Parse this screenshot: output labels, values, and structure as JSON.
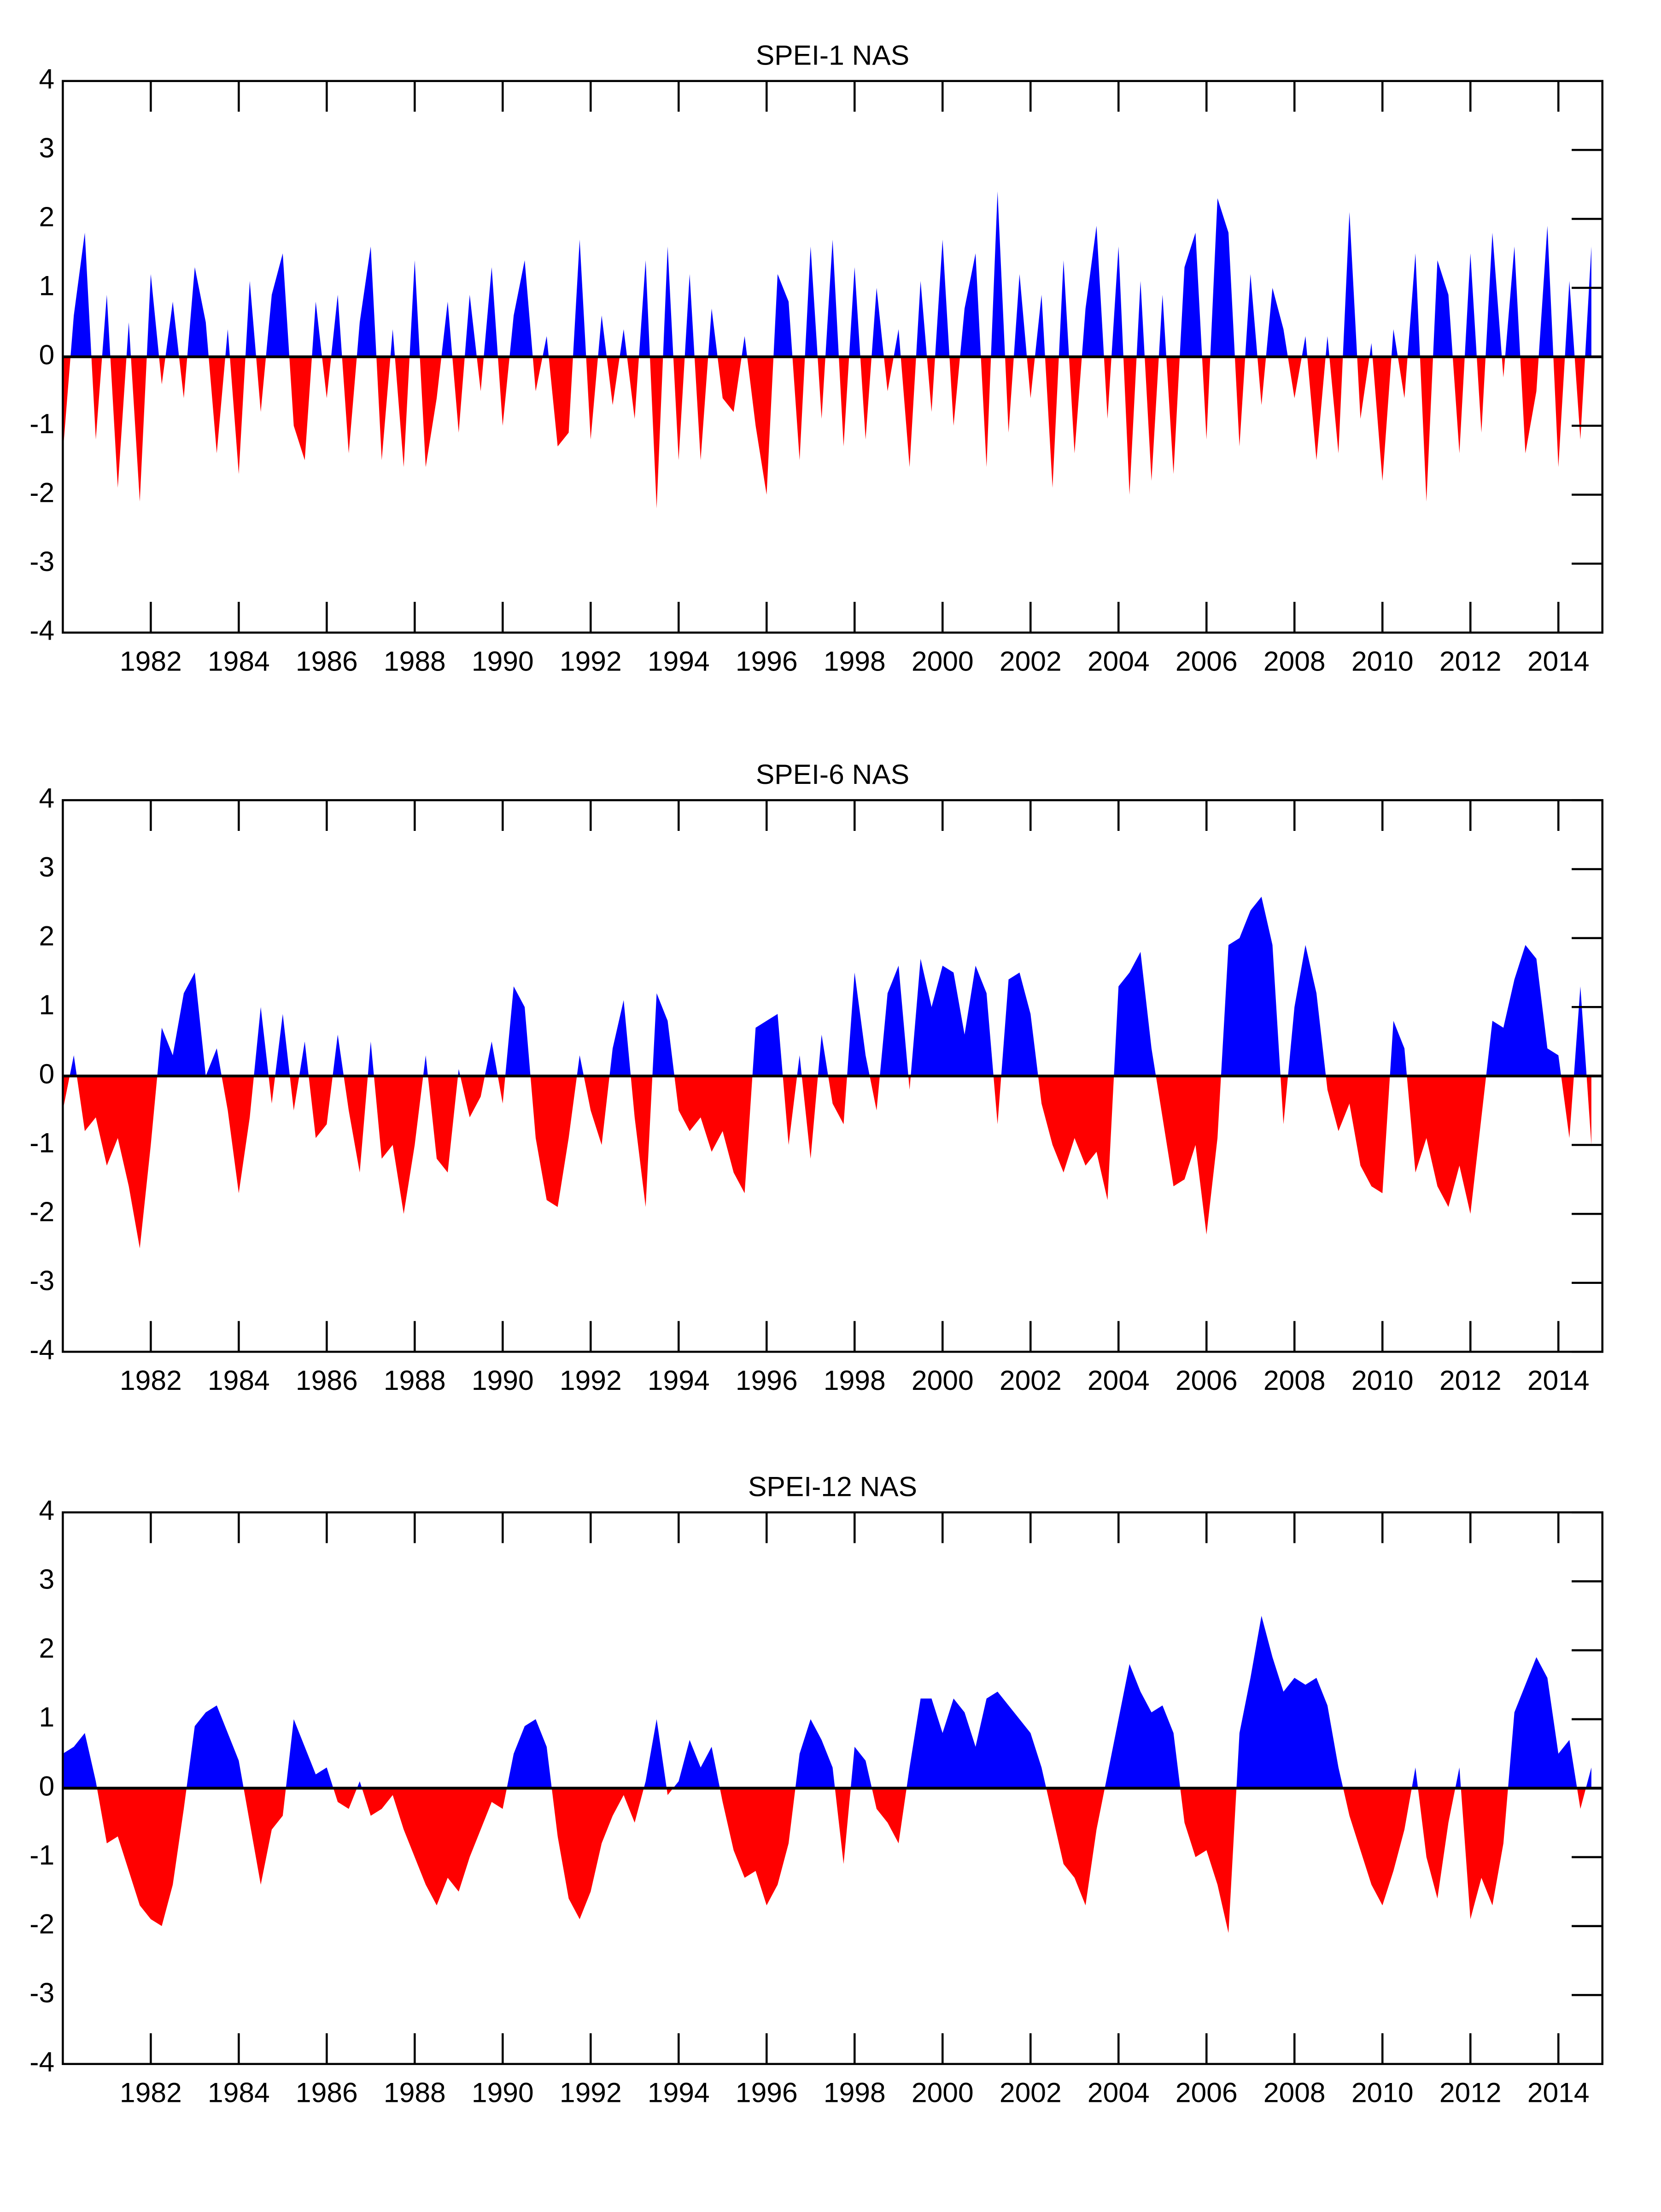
{
  "chart_data": [
    {
      "type": "area",
      "title": "SPEI-1 NAS",
      "pos_color": "#0000ff",
      "neg_color": "#ff0000",
      "x": [
        1980,
        1980.25,
        1980.5,
        1980.75,
        1981,
        1981.25,
        1981.5,
        1981.75,
        1982,
        1982.25,
        1982.5,
        1982.75,
        1983,
        1983.25,
        1983.5,
        1983.75,
        1984,
        1984.25,
        1984.5,
        1984.75,
        1985,
        1985.25,
        1985.5,
        1985.75,
        1986,
        1986.25,
        1986.5,
        1986.75,
        1987,
        1987.25,
        1987.5,
        1987.75,
        1988,
        1988.25,
        1988.5,
        1988.75,
        1989,
        1989.25,
        1989.5,
        1989.75,
        1990,
        1990.25,
        1990.5,
        1990.75,
        1991,
        1991.25,
        1991.5,
        1991.75,
        1992,
        1992.25,
        1992.5,
        1992.75,
        1993,
        1993.25,
        1993.5,
        1993.75,
        1994,
        1994.25,
        1994.5,
        1994.75,
        1995,
        1995.25,
        1995.5,
        1995.75,
        1996,
        1996.25,
        1996.5,
        1996.75,
        1997,
        1997.25,
        1997.5,
        1997.75,
        1998,
        1998.25,
        1998.5,
        1998.75,
        1999,
        1999.25,
        1999.5,
        1999.75,
        2000,
        2000.25,
        2000.5,
        2000.75,
        2001,
        2001.25,
        2001.5,
        2001.75,
        2002,
        2002.25,
        2002.5,
        2002.75,
        2003,
        2003.25,
        2003.5,
        2003.75,
        2004,
        2004.25,
        2004.5,
        2004.75,
        2005,
        2005.25,
        2005.5,
        2005.75,
        2006,
        2006.25,
        2006.5,
        2006.75,
        2007,
        2007.25,
        2007.5,
        2007.75,
        2008,
        2008.25,
        2008.5,
        2008.75,
        2009,
        2009.25,
        2009.5,
        2009.75,
        2010,
        2010.25,
        2010.5,
        2010.75,
        2011,
        2011.25,
        2011.5,
        2011.75,
        2012,
        2012.25,
        2012.5,
        2012.75,
        2013,
        2013.25,
        2013.5,
        2013.75,
        2014,
        2014.25,
        2014.5,
        2014.75
      ],
      "values": [
        -1.4,
        0.6,
        1.8,
        -1.2,
        0.9,
        -1.9,
        0.5,
        -2.1,
        1.2,
        -0.4,
        0.8,
        -0.6,
        1.3,
        0.5,
        -1.4,
        0.4,
        -1.7,
        1.1,
        -0.8,
        0.9,
        1.5,
        -1.0,
        -1.5,
        0.8,
        -0.6,
        0.9,
        -1.4,
        0.5,
        1.6,
        -1.5,
        0.4,
        -1.6,
        1.4,
        -1.6,
        -0.6,
        0.8,
        -1.1,
        0.9,
        -0.5,
        1.3,
        -1.0,
        0.6,
        1.4,
        -0.5,
        0.3,
        -1.3,
        -1.1,
        1.7,
        -1.2,
        0.6,
        -0.7,
        0.4,
        -0.9,
        1.4,
        -2.2,
        1.6,
        -1.5,
        1.2,
        -1.5,
        0.7,
        -0.6,
        -0.8,
        0.3,
        -1.0,
        -2.0,
        1.2,
        0.8,
        -1.5,
        1.6,
        -0.9,
        1.7,
        -1.3,
        1.3,
        -1.2,
        1.0,
        -0.5,
        0.4,
        -1.6,
        1.1,
        -0.8,
        1.7,
        -1.0,
        0.7,
        1.5,
        -1.6,
        2.4,
        -1.1,
        1.2,
        -0.6,
        0.9,
        -1.9,
        1.4,
        -1.4,
        0.7,
        1.9,
        -0.9,
        1.6,
        -2.0,
        1.1,
        -1.8,
        0.9,
        -1.7,
        1.3,
        1.8,
        -1.2,
        2.3,
        1.8,
        -1.3,
        1.2,
        -0.7,
        1.0,
        0.4,
        -0.6,
        0.3,
        -1.5,
        0.3,
        -1.4,
        2.1,
        -0.9,
        0.2,
        -1.8,
        0.4,
        -0.6,
        1.5,
        -2.1,
        1.4,
        0.9,
        -1.4,
        1.5,
        -1.1,
        1.8,
        -0.3,
        1.6,
        -1.4,
        -0.5,
        1.9,
        -1.6,
        1.1,
        -1.2,
        1.6
      ],
      "xlim": [
        1980,
        2015
      ],
      "ylim": [
        -4,
        4
      ],
      "xticks": [
        1982,
        1984,
        1986,
        1988,
        1990,
        1992,
        1994,
        1996,
        1998,
        2000,
        2002,
        2004,
        2006,
        2008,
        2010,
        2012,
        2014
      ],
      "yticks": [
        -4,
        -3,
        -2,
        -1,
        0,
        1,
        2,
        3,
        4
      ]
    },
    {
      "type": "area",
      "title": "SPEI-6 NAS",
      "pos_color": "#0000ff",
      "neg_color": "#ff0000",
      "x": [
        1980,
        1980.25,
        1980.5,
        1980.75,
        1981,
        1981.25,
        1981.5,
        1981.75,
        1982,
        1982.25,
        1982.5,
        1982.75,
        1983,
        1983.25,
        1983.5,
        1983.75,
        1984,
        1984.25,
        1984.5,
        1984.75,
        1985,
        1985.25,
        1985.5,
        1985.75,
        1986,
        1986.25,
        1986.5,
        1986.75,
        1987,
        1987.25,
        1987.5,
        1987.75,
        1988,
        1988.25,
        1988.5,
        1988.75,
        1989,
        1989.25,
        1989.5,
        1989.75,
        1990,
        1990.25,
        1990.5,
        1990.75,
        1991,
        1991.25,
        1991.5,
        1991.75,
        1992,
        1992.25,
        1992.5,
        1992.75,
        1993,
        1993.25,
        1993.5,
        1993.75,
        1994,
        1994.25,
        1994.5,
        1994.75,
        1995,
        1995.25,
        1995.5,
        1995.75,
        1996,
        1996.25,
        1996.5,
        1996.75,
        1997,
        1997.25,
        1997.5,
        1997.75,
        1998,
        1998.25,
        1998.5,
        1998.75,
        1999,
        1999.25,
        1999.5,
        1999.75,
        2000,
        2000.25,
        2000.5,
        2000.75,
        2001,
        2001.25,
        2001.5,
        2001.75,
        2002,
        2002.25,
        2002.5,
        2002.75,
        2003,
        2003.25,
        2003.5,
        2003.75,
        2004,
        2004.25,
        2004.5,
        2004.75,
        2005,
        2005.25,
        2005.5,
        2005.75,
        2006,
        2006.25,
        2006.5,
        2006.75,
        2007,
        2007.25,
        2007.5,
        2007.75,
        2008,
        2008.25,
        2008.5,
        2008.75,
        2009,
        2009.25,
        2009.5,
        2009.75,
        2010,
        2010.25,
        2010.5,
        2010.75,
        2011,
        2011.25,
        2011.5,
        2011.75,
        2012,
        2012.25,
        2012.5,
        2012.75,
        2013,
        2013.25,
        2013.5,
        2013.75,
        2014,
        2014.25,
        2014.5,
        2014.75
      ],
      "values": [
        -0.5,
        0.3,
        -0.8,
        -0.6,
        -1.3,
        -0.9,
        -1.6,
        -2.5,
        -1.0,
        0.7,
        0.3,
        1.2,
        1.5,
        0.0,
        0.4,
        -0.5,
        -1.7,
        -0.6,
        1.0,
        -0.4,
        0.9,
        -0.5,
        0.5,
        -0.9,
        -0.7,
        0.6,
        -0.5,
        -1.4,
        0.5,
        -1.2,
        -1.0,
        -2.0,
        -1.0,
        0.3,
        -1.2,
        -1.4,
        0.1,
        -0.6,
        -0.3,
        0.5,
        -0.4,
        1.3,
        1.0,
        -0.9,
        -1.8,
        -1.9,
        -0.9,
        0.3,
        -0.5,
        -1.0,
        0.4,
        1.1,
        -0.6,
        -1.9,
        1.2,
        0.8,
        -0.5,
        -0.8,
        -0.6,
        -1.1,
        -0.8,
        -1.4,
        -1.7,
        0.7,
        0.8,
        0.9,
        -1.0,
        0.3,
        -1.2,
        0.6,
        -0.4,
        -0.7,
        1.5,
        0.3,
        -0.5,
        1.2,
        1.6,
        -0.2,
        1.7,
        1.0,
        1.6,
        1.5,
        0.6,
        1.6,
        1.2,
        -0.7,
        1.4,
        1.5,
        0.9,
        -0.4,
        -1.0,
        -1.4,
        -0.9,
        -1.3,
        -1.1,
        -1.8,
        1.3,
        1.5,
        1.8,
        0.4,
        -0.6,
        -1.6,
        -1.5,
        -1.0,
        -2.3,
        -0.9,
        1.9,
        2.0,
        2.4,
        2.6,
        1.9,
        -0.7,
        1.0,
        1.9,
        1.2,
        -0.2,
        -0.8,
        -0.4,
        -1.3,
        -1.6,
        -1.7,
        0.8,
        0.4,
        -1.4,
        -0.9,
        -1.6,
        -1.9,
        -1.3,
        -2.0,
        -0.6,
        0.8,
        0.7,
        1.4,
        1.9,
        1.7,
        0.4,
        0.3,
        -0.9,
        1.3,
        -1.0
      ],
      "xlim": [
        1980,
        2015
      ],
      "ylim": [
        -4,
        4
      ],
      "xticks": [
        1982,
        1984,
        1986,
        1988,
        1990,
        1992,
        1994,
        1996,
        1998,
        2000,
        2002,
        2004,
        2006,
        2008,
        2010,
        2012,
        2014
      ],
      "yticks": [
        -4,
        -3,
        -2,
        -1,
        0,
        1,
        2,
        3,
        4
      ]
    },
    {
      "type": "area",
      "title": "SPEI-12 NAS",
      "pos_color": "#0000ff",
      "neg_color": "#ff0000",
      "x": [
        1980,
        1980.25,
        1980.5,
        1980.75,
        1981,
        1981.25,
        1981.5,
        1981.75,
        1982,
        1982.25,
        1982.5,
        1982.75,
        1983,
        1983.25,
        1983.5,
        1983.75,
        1984,
        1984.25,
        1984.5,
        1984.75,
        1985,
        1985.25,
        1985.5,
        1985.75,
        1986,
        1986.25,
        1986.5,
        1986.75,
        1987,
        1987.25,
        1987.5,
        1987.75,
        1988,
        1988.25,
        1988.5,
        1988.75,
        1989,
        1989.25,
        1989.5,
        1989.75,
        1990,
        1990.25,
        1990.5,
        1990.75,
        1991,
        1991.25,
        1991.5,
        1991.75,
        1992,
        1992.25,
        1992.5,
        1992.75,
        1993,
        1993.25,
        1993.5,
        1993.75,
        1994,
        1994.25,
        1994.5,
        1994.75,
        1995,
        1995.25,
        1995.5,
        1995.75,
        1996,
        1996.25,
        1996.5,
        1996.75,
        1997,
        1997.25,
        1997.5,
        1997.75,
        1998,
        1998.25,
        1998.5,
        1998.75,
        1999,
        1999.25,
        1999.5,
        1999.75,
        2000,
        2000.25,
        2000.5,
        2000.75,
        2001,
        2001.25,
        2001.5,
        2001.75,
        2002,
        2002.25,
        2002.5,
        2002.75,
        2003,
        2003.25,
        2003.5,
        2003.75,
        2004,
        2004.25,
        2004.5,
        2004.75,
        2005,
        2005.25,
        2005.5,
        2005.75,
        2006,
        2006.25,
        2006.5,
        2006.75,
        2007,
        2007.25,
        2007.5,
        2007.75,
        2008,
        2008.25,
        2008.5,
        2008.75,
        2009,
        2009.25,
        2009.5,
        2009.75,
        2010,
        2010.25,
        2010.5,
        2010.75,
        2011,
        2011.25,
        2011.5,
        2011.75,
        2012,
        2012.25,
        2012.5,
        2012.75,
        2013,
        2013.25,
        2013.5,
        2013.75,
        2014,
        2014.25,
        2014.5,
        2014.75
      ],
      "values": [
        0.5,
        0.6,
        0.8,
        0.1,
        -0.8,
        -0.7,
        -1.2,
        -1.7,
        -1.9,
        -2.0,
        -1.4,
        -0.3,
        0.9,
        1.1,
        1.2,
        0.8,
        0.4,
        -0.5,
        -1.4,
        -0.6,
        -0.4,
        1.0,
        0.6,
        0.2,
        0.3,
        -0.2,
        -0.3,
        0.1,
        -0.4,
        -0.3,
        -0.1,
        -0.6,
        -1.0,
        -1.4,
        -1.7,
        -1.3,
        -1.5,
        -1.0,
        -0.6,
        -0.2,
        -0.3,
        0.5,
        0.9,
        1.0,
        0.6,
        -0.7,
        -1.6,
        -1.9,
        -1.5,
        -0.8,
        -0.4,
        -0.1,
        -0.5,
        0.1,
        1.0,
        -0.1,
        0.1,
        0.7,
        0.3,
        0.6,
        -0.2,
        -0.9,
        -1.3,
        -1.2,
        -1.7,
        -1.4,
        -0.8,
        0.5,
        1.0,
        0.7,
        0.3,
        -1.1,
        0.6,
        0.4,
        -0.3,
        -0.5,
        -0.8,
        0.3,
        1.3,
        1.3,
        0.8,
        1.3,
        1.1,
        0.6,
        1.3,
        1.4,
        1.2,
        1.0,
        0.8,
        0.3,
        -0.4,
        -1.1,
        -1.3,
        -1.7,
        -0.6,
        0.2,
        1.0,
        1.8,
        1.4,
        1.1,
        1.2,
        0.8,
        -0.5,
        -1.0,
        -0.9,
        -1.4,
        -2.1,
        0.8,
        1.6,
        2.5,
        1.9,
        1.4,
        1.6,
        1.5,
        1.6,
        1.2,
        0.3,
        -0.4,
        -0.9,
        -1.4,
        -1.7,
        -1.2,
        -0.6,
        0.3,
        -1.0,
        -1.6,
        -0.5,
        0.3,
        -1.9,
        -1.3,
        -1.7,
        -0.8,
        1.1,
        1.5,
        1.9,
        1.6,
        0.5,
        0.7,
        -0.3,
        0.3
      ],
      "xlim": [
        1980,
        2015
      ],
      "ylim": [
        -4,
        4
      ],
      "xticks": [
        1982,
        1984,
        1986,
        1988,
        1990,
        1992,
        1994,
        1996,
        1998,
        2000,
        2002,
        2004,
        2006,
        2008,
        2010,
        2012,
        2014
      ],
      "yticks": [
        -4,
        -3,
        -2,
        -1,
        0,
        1,
        2,
        3,
        4
      ]
    }
  ]
}
